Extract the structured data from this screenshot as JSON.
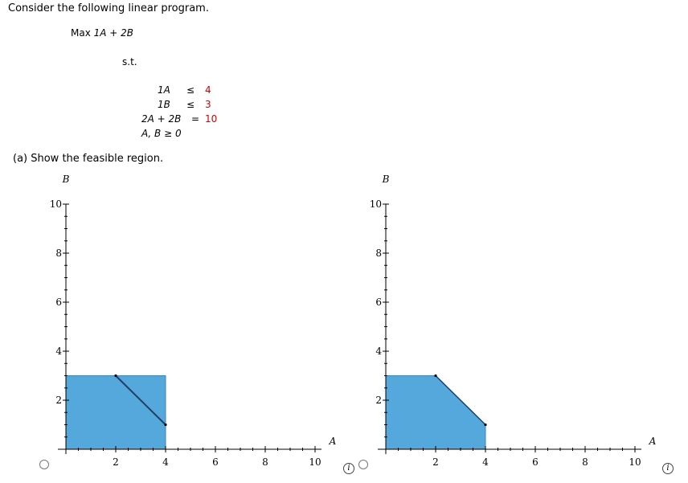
{
  "problem": {
    "intro": "Consider the following linear program.",
    "objective": {
      "prefix": "Max ",
      "term1": "1A",
      "plus": " + ",
      "term2": "2B"
    },
    "st": "s.t.",
    "constraints": [
      {
        "lhs": "1A",
        "op": "≤",
        "rhs": "4"
      },
      {
        "lhs": "1B",
        "op": "≤",
        "rhs": "3"
      },
      {
        "lhs": "2A + 2B",
        "op": "=",
        "rhs": "10"
      }
    ],
    "nonneg": "A, B ≥ 0",
    "part_a": "(a)  Show the feasible region."
  },
  "graphs": [
    {
      "y_axis_label": "B",
      "x_axis_label": "A",
      "x_ticks": [
        "2",
        "4",
        "6",
        "8",
        "10"
      ],
      "y_ticks": [
        "2",
        "4",
        "6",
        "8",
        "10"
      ],
      "info_glyph": "i"
    },
    {
      "y_axis_label": "B",
      "x_axis_label": "A",
      "x_ticks": [
        "2",
        "4",
        "6",
        "8",
        "10"
      ],
      "y_ticks": [
        "2",
        "4",
        "6",
        "8",
        "10"
      ],
      "info_glyph": "i"
    }
  ],
  "chart_data": [
    {
      "type": "area",
      "xlabel": "A",
      "ylabel": "B",
      "xlim": [
        0,
        10
      ],
      "ylim": [
        0,
        10
      ],
      "region": [
        [
          0,
          0
        ],
        [
          0,
          3
        ],
        [
          4,
          3
        ],
        [
          4,
          0
        ]
      ],
      "line_segment": [
        [
          2,
          3
        ],
        [
          4,
          1
        ]
      ],
      "fill_color": "#55a8dc",
      "line_color": "#1f3f66"
    },
    {
      "type": "area",
      "xlabel": "A",
      "ylabel": "B",
      "xlim": [
        0,
        10
      ],
      "ylim": [
        0,
        10
      ],
      "region": [
        [
          0,
          0
        ],
        [
          0,
          3
        ],
        [
          2,
          3
        ],
        [
          4,
          1
        ],
        [
          4,
          0
        ]
      ],
      "fill_color": "#55a8dc",
      "line_color": "#1f3f66"
    }
  ]
}
